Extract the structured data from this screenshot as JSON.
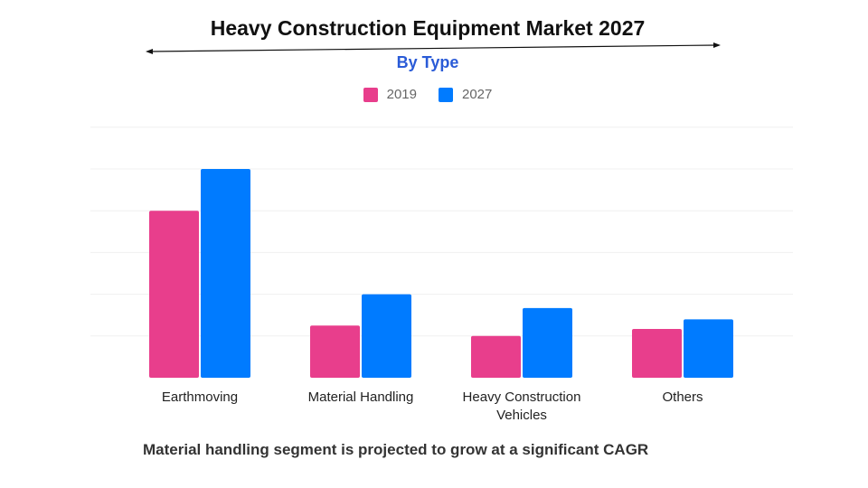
{
  "chart_data": {
    "type": "bar",
    "title": "Heavy Construction Equipment Market 2027",
    "subtitle": "By Type",
    "categories": [
      "Earthmoving",
      "Material Handling",
      "Heavy Construction Vehicles",
      "Others"
    ],
    "series": [
      {
        "name": "2019",
        "color": "#e83e8c",
        "values": [
          4,
          1.25,
          1,
          1.17
        ]
      },
      {
        "name": "2027",
        "color": "#007bff",
        "values": [
          5,
          2,
          1.67,
          1.4
        ]
      }
    ],
    "xlabel": "",
    "ylabel": "",
    "ylim": [
      0,
      6
    ],
    "grid": true,
    "legend": "top-center",
    "annotation": "Material handling segment is projected to grow at a significant CAGR"
  }
}
